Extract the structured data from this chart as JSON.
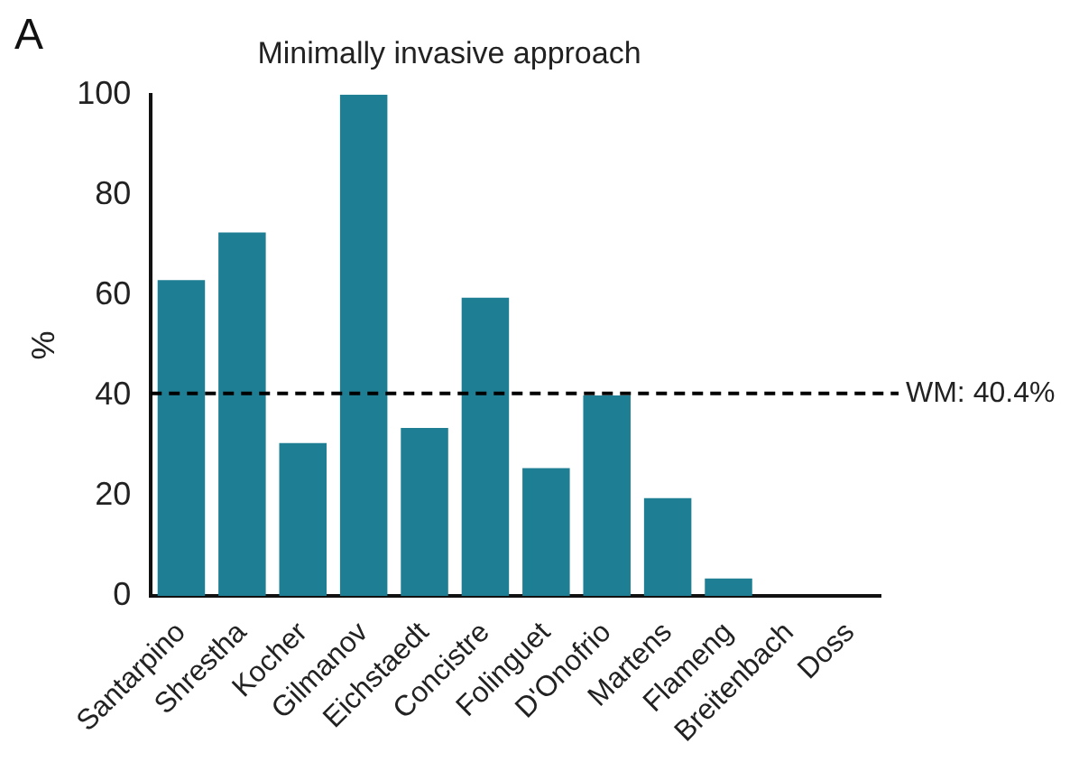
{
  "chart_data": {
    "type": "bar",
    "title": "Minimally invasive approach",
    "ylabel": "%",
    "annotations": [
      "A"
    ],
    "categories": [
      "Santarpino",
      "Shrestha",
      "Kocher",
      "Gilmanov",
      "Eichstaedt",
      "Concistre",
      "Folinguet",
      "D'Onofrio",
      "Martens",
      "Flameng",
      "Breitenbach",
      "Doss"
    ],
    "values": [
      63,
      72.5,
      30.5,
      100,
      33.5,
      59.5,
      25.5,
      40,
      19.5,
      3.5,
      0,
      0
    ],
    "color": "#1e7f94",
    "ylim": [
      0,
      100
    ],
    "yticks": [
      0,
      20,
      40,
      60,
      80,
      100
    ],
    "ref_lines": [
      {
        "axis": "y",
        "value": 40.4,
        "label": "WM: 40.4%",
        "color": "#000000",
        "line_style": "dashed"
      }
    ],
    "grid": false,
    "legend": false
  }
}
